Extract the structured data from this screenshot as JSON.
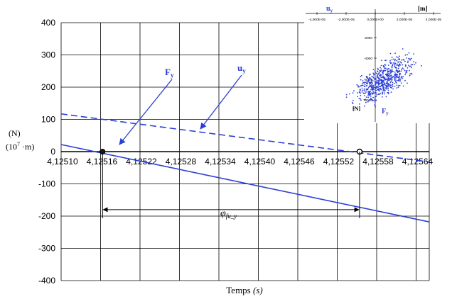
{
  "colors": {
    "series": "#2b3fd6",
    "grid": "#000000",
    "axis": "#000000"
  },
  "chart_data": [
    {
      "type": "line",
      "xlabel_prefix": "Temps ",
      "xlabel_unit": "(s)",
      "ylabel_line1": "(N)",
      "ylabel_line2_base": "(10",
      "ylabel_line2_exp": "7",
      "ylabel_line2_rest": " ·m)",
      "xlim": [
        4.1251,
        4.12566
      ],
      "ylim": [
        -400,
        400
      ],
      "x_ticks": [
        4.1251,
        4.12516,
        4.12522,
        4.12528,
        4.12534,
        4.1254,
        4.12546,
        4.12552,
        4.12558,
        4.12564
      ],
      "x_tick_labels": [
        "4,12510",
        "4,12516",
        "4,12522",
        "4,12528",
        "4,12534",
        "4,12540",
        "4,12546",
        "4,12552",
        "4,12558",
        "4,12564"
      ],
      "y_ticks": [
        -400,
        -300,
        -200,
        -100,
        0,
        100,
        200,
        300,
        400
      ],
      "y_tick_labels": [
        "-400",
        "-300",
        "-200",
        "-100",
        "0",
        "100",
        "200",
        "300",
        "400"
      ],
      "grid": true,
      "series": [
        {
          "name": "Fy",
          "style": "solid",
          "x": [
            4.1251,
            4.12566
          ],
          "y": [
            22,
            -218
          ]
        },
        {
          "name": "uy",
          "style": "dashed",
          "x": [
            4.1251,
            4.12566
          ],
          "y": [
            117,
            -32
          ]
        }
      ],
      "zero_crossings": [
        {
          "series": "Fy",
          "x": 4.125163
        },
        {
          "series": "uy",
          "x": 4.125554
        }
      ],
      "annotations": {
        "Fy_label_main": "F",
        "Fy_label_sub": "y",
        "uy_label_main": "u",
        "uy_label_sub": "y",
        "phase_label_main": "φ",
        "phase_label_sub": "fu_y",
        "phase_arrow_y": -180
      }
    },
    {
      "type": "scatter",
      "inset": true,
      "top_left_label_main": "u",
      "top_left_label_sub": "y",
      "top_right_label": "[m]",
      "bottom_left_label": "[N]",
      "bottom_right_label_main": "F",
      "bottom_right_label_sub": "y",
      "x_tick_labels": [
        "-4,000E-05",
        "-2,000E-05",
        "0,000E+00",
        "2,000E-05",
        "4,000E-05"
      ],
      "y_tick_labels": [
        "-2000",
        "-4000",
        "-6000",
        "-8000"
      ],
      "points_note": "dense elliptical cloud of points"
    }
  ]
}
